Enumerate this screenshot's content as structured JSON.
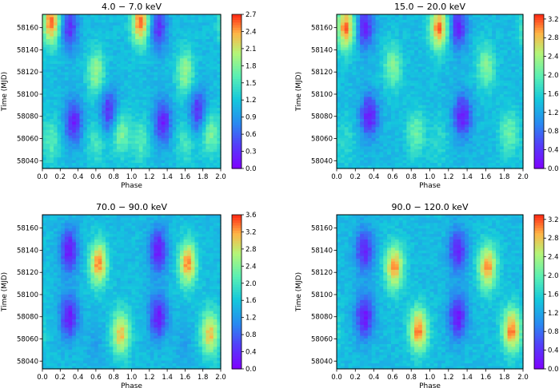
{
  "chart_data": [
    {
      "type": "heatmap",
      "title": "4.0 − 7.0 keV",
      "xlabel": "Phase",
      "ylabel": "Time (MJD)",
      "xlim": [
        0.0,
        2.0
      ],
      "ylim": [
        58033,
        58172
      ],
      "x_ticks": [
        "0.0",
        "0.2",
        "0.4",
        "0.6",
        "0.8",
        "1.0",
        "1.2",
        "1.4",
        "1.6",
        "1.8",
        "2.0"
      ],
      "y_ticks": [
        "58040",
        "58060",
        "58080",
        "58100",
        "58120",
        "58140",
        "58160"
      ],
      "colorbar_range": [
        0.0,
        2.7
      ],
      "colorbar_ticks": [
        "0.0",
        "0.3",
        "0.6",
        "0.9",
        "1.2",
        "1.5",
        "1.8",
        "2.1",
        "2.4",
        "2.7"
      ],
      "colormap": "rainbow",
      "features": [
        {
          "phase": 0.1,
          "mjd": 58165,
          "value": 2.6
        },
        {
          "phase": 0.6,
          "mjd": 58120,
          "value": 1.9
        },
        {
          "phase": 0.88,
          "mjd": 58065,
          "value": 1.8
        },
        {
          "phase": 0.1,
          "mjd": 58058,
          "value": 1.6
        },
        {
          "phase": 0.6,
          "mjd": 58055,
          "value": 1.5
        },
        {
          "phase": 0.35,
          "mjd": 58075,
          "value": 0.2
        },
        {
          "phase": 0.75,
          "mjd": 58085,
          "value": 0.3
        },
        {
          "phase": 0.3,
          "mjd": 58160,
          "value": 0.3
        }
      ]
    },
    {
      "type": "heatmap",
      "title": "15.0 − 20.0 keV",
      "xlabel": "Phase",
      "ylabel": "Time (MJD)",
      "xlim": [
        0.0,
        2.0
      ],
      "ylim": [
        58033,
        58172
      ],
      "x_ticks": [
        "0.0",
        "0.2",
        "0.4",
        "0.6",
        "0.8",
        "1.0",
        "1.2",
        "1.4",
        "1.6",
        "1.8",
        "2.0"
      ],
      "y_ticks": [
        "58040",
        "58060",
        "58080",
        "58100",
        "58120",
        "58140",
        "58160"
      ],
      "colorbar_range": [
        0.0,
        3.3
      ],
      "colorbar_ticks": [
        "0.0",
        "0.4",
        "0.8",
        "1.2",
        "1.6",
        "2.0",
        "2.4",
        "2.8",
        "3.2"
      ],
      "colormap": "rainbow",
      "features": [
        {
          "phase": 0.1,
          "mjd": 58160,
          "value": 3.1
        },
        {
          "phase": 0.6,
          "mjd": 58125,
          "value": 2.2
        },
        {
          "phase": 0.85,
          "mjd": 58065,
          "value": 2.1
        },
        {
          "phase": 0.1,
          "mjd": 58058,
          "value": 1.7
        },
        {
          "phase": 0.35,
          "mjd": 58080,
          "value": 0.2
        },
        {
          "phase": 0.3,
          "mjd": 58160,
          "value": 0.3
        }
      ]
    },
    {
      "type": "heatmap",
      "title": "70.0 − 90.0 keV",
      "xlabel": "Phase",
      "ylabel": "Time (MJD)",
      "xlim": [
        0.0,
        2.0
      ],
      "ylim": [
        58033,
        58172
      ],
      "x_ticks": [
        "0.0",
        "0.2",
        "0.4",
        "0.6",
        "0.8",
        "1.0",
        "1.2",
        "1.4",
        "1.6",
        "1.8",
        "2.0"
      ],
      "y_ticks": [
        "58040",
        "58060",
        "58080",
        "58100",
        "58120",
        "58140",
        "58160"
      ],
      "colorbar_range": [
        0.0,
        3.6
      ],
      "colorbar_ticks": [
        "0.0",
        "0.4",
        "0.8",
        "1.2",
        "1.6",
        "2.0",
        "2.4",
        "2.8",
        "3.2",
        "3.6"
      ],
      "colormap": "rainbow",
      "features": [
        {
          "phase": 0.63,
          "mjd": 58128,
          "value": 3.3
        },
        {
          "phase": 0.88,
          "mjd": 58065,
          "value": 3.1
        },
        {
          "phase": 0.6,
          "mjd": 58055,
          "value": 1.3
        },
        {
          "phase": 0.3,
          "mjd": 58080,
          "value": 0.2
        },
        {
          "phase": 0.3,
          "mjd": 58140,
          "value": 0.2
        }
      ]
    },
    {
      "type": "heatmap",
      "title": "90.0 − 120.0 keV",
      "xlabel": "Phase",
      "ylabel": "Time (MJD)",
      "xlim": [
        0.0,
        2.0
      ],
      "ylim": [
        58033,
        58172
      ],
      "x_ticks": [
        "0.0",
        "0.2",
        "0.4",
        "0.6",
        "0.8",
        "1.0",
        "1.2",
        "1.4",
        "1.6",
        "1.8",
        "2.0"
      ],
      "y_ticks": [
        "58040",
        "58060",
        "58080",
        "58100",
        "58120",
        "58140",
        "58160"
      ],
      "colorbar_range": [
        0.0,
        3.3
      ],
      "colorbar_ticks": [
        "0.0",
        "0.4",
        "0.8",
        "1.2",
        "1.6",
        "2.0",
        "2.4",
        "2.8",
        "3.2"
      ],
      "colormap": "rainbow",
      "features": [
        {
          "phase": 0.62,
          "mjd": 58125,
          "value": 3.0
        },
        {
          "phase": 0.88,
          "mjd": 58068,
          "value": 3.1
        },
        {
          "phase": 0.3,
          "mjd": 58080,
          "value": 0.2
        },
        {
          "phase": 0.3,
          "mjd": 58140,
          "value": 0.3
        }
      ]
    }
  ]
}
